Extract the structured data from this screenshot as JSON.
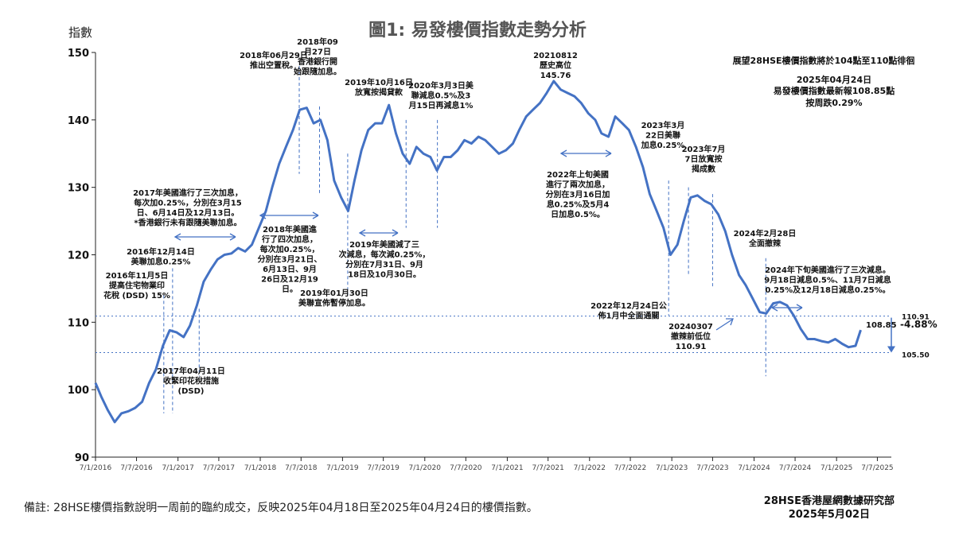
{
  "chart_data": {
    "type": "line",
    "title": "圖1: 易發樓價指數走勢分析",
    "ylabel": "指數",
    "ylim": [
      90,
      150
    ],
    "yticks": [
      90,
      100,
      110,
      120,
      130,
      140,
      150
    ],
    "xlim": [
      "2016-01-07",
      "2025-09-07"
    ],
    "xticks": [
      "7/1/2016",
      "7/7/2016",
      "7/1/2017",
      "7/7/2017",
      "7/1/2018",
      "7/7/2018",
      "7/1/2019",
      "7/7/2019",
      "7/1/2020",
      "7/7/2020",
      "7/1/2021",
      "7/7/2021",
      "7/1/2022",
      "7/7/2022",
      "7/1/2023",
      "7/7/2023",
      "7/1/2024",
      "7/7/2024",
      "7/1/2025",
      "7/7/2025"
    ],
    "series": [
      {
        "color": "#4472c4",
        "points": [
          [
            "2016-01-07",
            101
          ],
          [
            "2016-02-01",
            99
          ],
          [
            "2016-03-01",
            97
          ],
          [
            "2016-04-01",
            95.2
          ],
          [
            "2016-05-01",
            96.5
          ],
          [
            "2016-06-01",
            96.8
          ],
          [
            "2016-07-01",
            97.3
          ],
          [
            "2016-08-01",
            98.2
          ],
          [
            "2016-09-01",
            101
          ],
          [
            "2016-10-01",
            103
          ],
          [
            "2016-11-01",
            106.5
          ],
          [
            "2016-12-01",
            108.8
          ],
          [
            "2017-01-01",
            108.5
          ],
          [
            "2017-02-01",
            107.8
          ],
          [
            "2017-03-01",
            109.5
          ],
          [
            "2017-04-01",
            112.5
          ],
          [
            "2017-05-01",
            116
          ],
          [
            "2017-06-01",
            117.8
          ],
          [
            "2017-07-01",
            119.3
          ],
          [
            "2017-08-01",
            120
          ],
          [
            "2017-09-01",
            120.2
          ],
          [
            "2017-10-01",
            121
          ],
          [
            "2017-11-01",
            120.5
          ],
          [
            "2017-12-01",
            121.5
          ],
          [
            "2018-01-01",
            124
          ],
          [
            "2018-02-01",
            126.5
          ],
          [
            "2018-03-01",
            130
          ],
          [
            "2018-04-01",
            133.5
          ],
          [
            "2018-05-01",
            136
          ],
          [
            "2018-06-01",
            138.5
          ],
          [
            "2018-07-01",
            141.5
          ],
          [
            "2018-08-01",
            141.8
          ],
          [
            "2018-09-01",
            139.5
          ],
          [
            "2018-10-01",
            140
          ],
          [
            "2018-11-01",
            137
          ],
          [
            "2018-12-01",
            131
          ],
          [
            "2019-01-01",
            128.5
          ],
          [
            "2019-02-01",
            126.5
          ],
          [
            "2019-03-01",
            131
          ],
          [
            "2019-04-01",
            135.5
          ],
          [
            "2019-05-01",
            138.5
          ],
          [
            "2019-06-01",
            139.5
          ],
          [
            "2019-07-01",
            139.5
          ],
          [
            "2019-08-01",
            142.2
          ],
          [
            "2019-09-01",
            138
          ],
          [
            "2019-10-01",
            135
          ],
          [
            "2019-11-01",
            133.5
          ],
          [
            "2019-12-01",
            136
          ],
          [
            "2020-01-01",
            135
          ],
          [
            "2020-02-01",
            134.5
          ],
          [
            "2020-03-01",
            132.5
          ],
          [
            "2020-04-01",
            134.5
          ],
          [
            "2020-05-01",
            134.5
          ],
          [
            "2020-06-01",
            135.5
          ],
          [
            "2020-07-01",
            137
          ],
          [
            "2020-08-01",
            136.5
          ],
          [
            "2020-09-01",
            137.5
          ],
          [
            "2020-10-01",
            137
          ],
          [
            "2020-11-01",
            136
          ],
          [
            "2020-12-01",
            135
          ],
          [
            "2021-01-01",
            135.5
          ],
          [
            "2021-02-01",
            136.5
          ],
          [
            "2021-03-01",
            138.5
          ],
          [
            "2021-04-01",
            140.5
          ],
          [
            "2021-05-01",
            141.5
          ],
          [
            "2021-06-01",
            142.5
          ],
          [
            "2021-07-01",
            144
          ],
          [
            "2021-08-01",
            145.76
          ],
          [
            "2021-09-01",
            144.5
          ],
          [
            "2021-10-01",
            144
          ],
          [
            "2021-11-01",
            143.5
          ],
          [
            "2021-12-01",
            142.5
          ],
          [
            "2022-01-01",
            141
          ],
          [
            "2022-02-01",
            140
          ],
          [
            "2022-03-01",
            138
          ],
          [
            "2022-04-01",
            137.5
          ],
          [
            "2022-05-01",
            140.5
          ],
          [
            "2022-06-01",
            139.5
          ],
          [
            "2022-07-01",
            138.5
          ],
          [
            "2022-08-01",
            136
          ],
          [
            "2022-09-01",
            133
          ],
          [
            "2022-10-01",
            129
          ],
          [
            "2022-11-01",
            126.5
          ],
          [
            "2022-12-01",
            124
          ],
          [
            "2023-01-01",
            120
          ],
          [
            "2023-02-01",
            121.5
          ],
          [
            "2023-03-01",
            125
          ],
          [
            "2023-04-01",
            128.5
          ],
          [
            "2023-05-01",
            128.8
          ],
          [
            "2023-06-01",
            128
          ],
          [
            "2023-07-01",
            127.5
          ],
          [
            "2023-08-01",
            126
          ],
          [
            "2023-09-01",
            123.5
          ],
          [
            "2023-10-01",
            120
          ],
          [
            "2023-11-01",
            117
          ],
          [
            "2023-12-01",
            115.5
          ],
          [
            "2024-01-01",
            113.5
          ],
          [
            "2024-02-01",
            111.5
          ],
          [
            "2024-03-01",
            111.3
          ],
          [
            "2024-04-01",
            112.8
          ],
          [
            "2024-05-01",
            113
          ],
          [
            "2024-06-01",
            112.5
          ],
          [
            "2024-07-01",
            111
          ],
          [
            "2024-08-01",
            109
          ],
          [
            "2024-09-01",
            107.5
          ],
          [
            "2024-10-01",
            107.5
          ],
          [
            "2024-11-01",
            107.2
          ],
          [
            "2024-12-01",
            107
          ],
          [
            "2025-01-01",
            107.5
          ],
          [
            "2025-02-01",
            106.8
          ],
          [
            "2025-03-01",
            106.3
          ],
          [
            "2025-04-01",
            106.5
          ],
          [
            "2025-04-24",
            108.85
          ]
        ]
      }
    ],
    "reference_lines": [
      {
        "value": 110.91,
        "label": "110.91"
      },
      {
        "value": 105.5,
        "label": "105.50"
      }
    ],
    "change_label": "-4.88%",
    "last_value_label": "108.85",
    "annotations": [
      {
        "id": "a2016-11",
        "date": "2016-11-05",
        "vline": [
          96.5,
          114
        ],
        "lines": [
          "2016年11月5日",
          "提高住宅物業印",
          "花稅 (DSD) 15%"
        ]
      },
      {
        "id": "a2016-12",
        "date": "2016-12-14",
        "vline": [
          96.5,
          118
        ],
        "lines": [
          "2016年12月14日",
          "美聯加息0.25%"
        ]
      },
      {
        "id": "a2017-04",
        "date": "2017-04-11",
        "vline": [
          102,
          112
        ],
        "lines": [
          "2017年04月11日",
          "收緊印花稅措施",
          "(DSD)"
        ]
      },
      {
        "id": "a2017-hikes",
        "date": "",
        "lines": [
          "2017年美國進行了三次加息，",
          "每次加0.25%，分別在3月15",
          "日、6月14日及12月13日。",
          "*香港銀行未有跟隨美聯加息。"
        ]
      },
      {
        "id": "a2018-06",
        "date": "2018-06-29",
        "vline": [
          132,
          148
        ],
        "lines": [
          "2018年06月29日",
          "推出空置稅。"
        ]
      },
      {
        "id": "a2018-09",
        "date": "2018-09-27",
        "vline": [
          129,
          142
        ],
        "lines": [
          "2018年09",
          "月27日",
          "香港銀行開",
          "始跟隨加息。"
        ]
      },
      {
        "id": "a2018-hikes",
        "date": "",
        "lines": [
          "2018年美國進",
          "行了四次加息，",
          "每次加0.25%，",
          "分別在3月21日、",
          "6月13日、9月",
          "26日及12月19",
          "日。"
        ]
      },
      {
        "id": "a2019-01",
        "date": "2019-01-30",
        "vline": [
          114,
          135
        ],
        "lines": [
          "2019年01月30日",
          "美聯宣佈暫停加息。"
        ]
      },
      {
        "id": "a2019-10",
        "date": "2019-10-16",
        "vline": [
          124,
          140
        ],
        "lines": [
          "2019年10月16日",
          "放寬按揭貸款"
        ]
      },
      {
        "id": "a2019-cuts",
        "date": "",
        "lines": [
          "2019年美國減了三",
          "次減息，每次減0.25%，",
          "分別在7月31日、9月",
          "18日及10月30日。"
        ]
      },
      {
        "id": "a2020-03",
        "date": "2020-03-03",
        "vline": [
          124,
          140
        ],
        "lines": [
          "2020年3月3日美",
          "聯減息0.5%及3",
          "月15日再減息1%"
        ]
      },
      {
        "id": "a2021-peak",
        "date": "2021-08-12",
        "lines": [
          "20210812",
          "歷史高位",
          "145.76"
        ]
      },
      {
        "id": "a2022-hikes",
        "date": "",
        "lines": [
          "2022年上旬美國",
          "進行了兩次加息，",
          "分別在3月16日加",
          "息0.25%及5月4",
          "日加息0.5%。"
        ]
      },
      {
        "id": "a2022-12",
        "date": "2022-12-24",
        "vline": [
          111,
          131
        ],
        "lines": [
          "2022年12月24日公",
          "佈1月中全面通關"
        ]
      },
      {
        "id": "a2023-03",
        "date": "2023-03-22",
        "vline": [
          117,
          130
        ],
        "lines": [
          "2023年3月",
          "22日美聯",
          "加息0.25%"
        ]
      },
      {
        "id": "a2023-07",
        "date": "2023-07-07",
        "vline": [
          115,
          129
        ],
        "lines": [
          "2023年7月",
          "7日放寬按",
          "揭成數"
        ]
      },
      {
        "id": "a2024-02",
        "date": "2024-02-28",
        "vline": [
          102,
          119.5
        ],
        "lines": [
          "2024年2月28日",
          "全面撤辣"
        ]
      },
      {
        "id": "a2024-low",
        "date": "2024-03-07",
        "lines": [
          "20240307",
          "撤辣前低位",
          "110.91"
        ]
      },
      {
        "id": "a2024-cuts",
        "date": "",
        "lines": [
          "2024年下旬美國進行了三次減息。",
          "9月18日減息0.5%、11月7日減息",
          "0.25%及12月18日減息0.25%。"
        ]
      }
    ],
    "outlook": [
      "展望28HSE樓價指數將於104點至110點徘徊",
      "2025年04月24日",
      "易發樓價指數最新報108.85點",
      "按周跌0.29%"
    ],
    "grid": false,
    "legend": "none"
  },
  "footer": {
    "note": "備註: 28HSE樓價指數說明一周前的臨約成交，反映2025年04月18日至2025年04月24日的樓價指數。",
    "source_line1": "28HSE香港屋網數據研究部",
    "source_line2": "2025年5月02日"
  }
}
